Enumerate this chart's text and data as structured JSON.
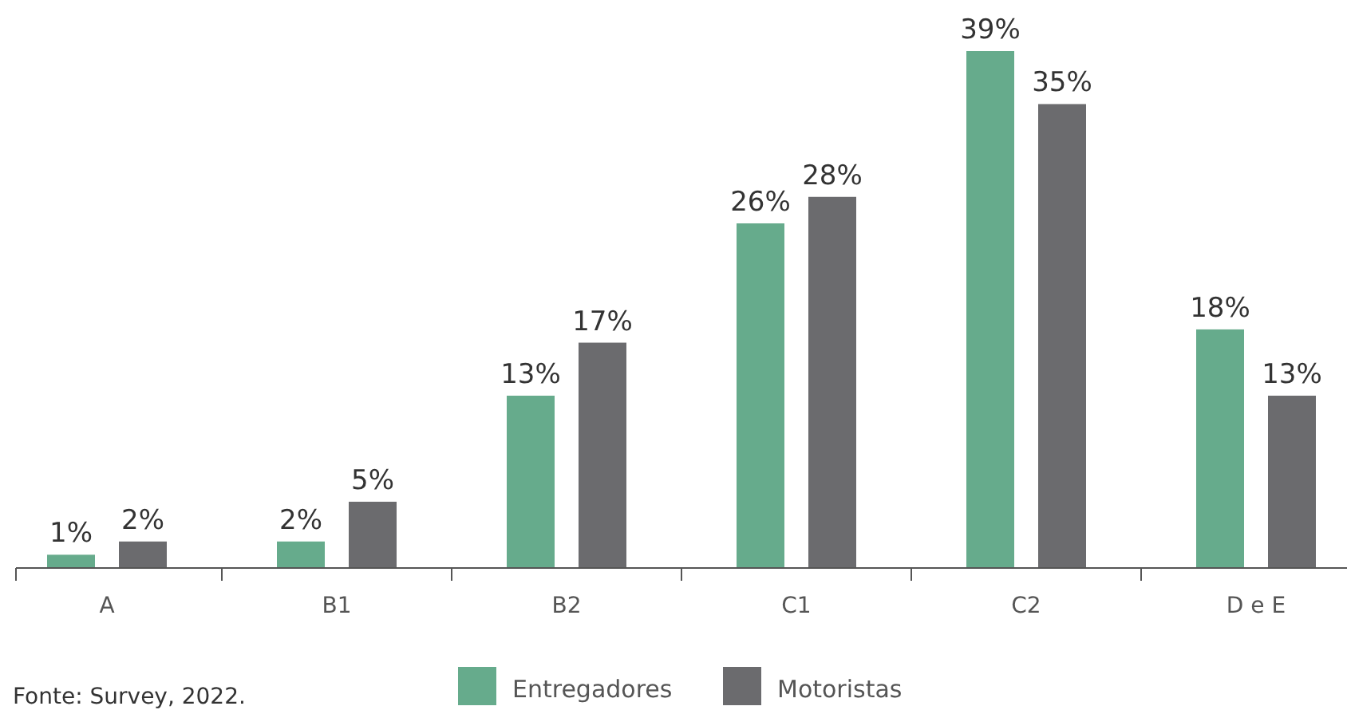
{
  "chart_data": {
    "type": "bar",
    "categories": [
      "A",
      "B1",
      "B2",
      "C1",
      "C2",
      "D e E"
    ],
    "series": [
      {
        "name": "Entregadores",
        "color": "#66ab8c",
        "values": [
          1,
          2,
          13,
          26,
          39,
          18
        ],
        "value_labels": [
          "1%",
          "2%",
          "13%",
          "26%",
          "39%",
          "18%"
        ]
      },
      {
        "name": "Motoristas",
        "color": "#6b6b6e",
        "values": [
          2,
          5,
          17,
          28,
          35,
          13
        ],
        "value_labels": [
          "2%",
          "5%",
          "17%",
          "28%",
          "35%",
          "13%"
        ]
      }
    ],
    "legend": "bottom",
    "annotations": [
      "Fonte: Survey, 2022."
    ]
  }
}
